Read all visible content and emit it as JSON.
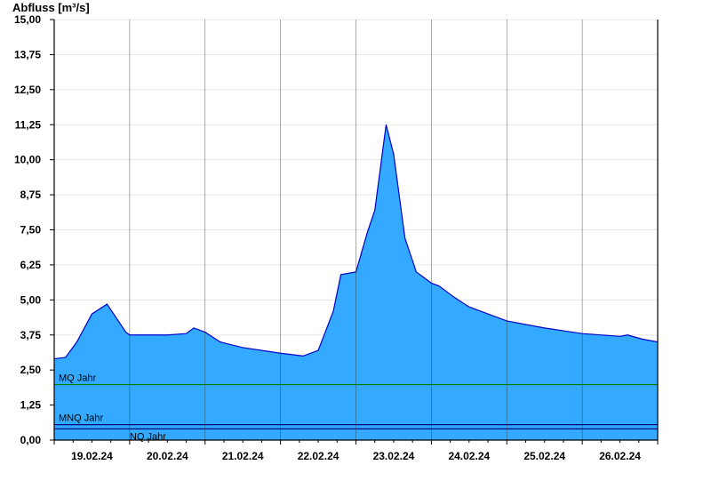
{
  "chart_data": {
    "type": "area",
    "ylabel": "Abfluss [m³/s]",
    "xlabel": "",
    "ylim": [
      0,
      15
    ],
    "y_ticks": [
      "0,00",
      "1,25",
      "2,50",
      "3,75",
      "5,00",
      "6,25",
      "7,50",
      "8,75",
      "10,00",
      "11,25",
      "12,50",
      "13,75",
      "15,00"
    ],
    "x_tick_labels": [
      "19.02.24",
      "20.02.24",
      "21.02.24",
      "22.02.24",
      "23.02.24",
      "24.02.24",
      "25.02.24",
      "26.02.24"
    ],
    "x_range_days": [
      0,
      8
    ],
    "grid": true,
    "area_color": "#33aaff",
    "line_color": "#0000cc",
    "series": [
      {
        "x": [
          0,
          0.15,
          0.3,
          0.5,
          0.7,
          0.95,
          1.0,
          1.5,
          1.75,
          1.85,
          2.0,
          2.2,
          2.5,
          3.0,
          3.3,
          3.5,
          3.7,
          3.8,
          4.0,
          4.15,
          4.25,
          4.4,
          4.5,
          4.65,
          4.8,
          5.0,
          5.1,
          5.3,
          5.5,
          6.0,
          6.5,
          7.0,
          7.5,
          7.6,
          7.8,
          8.0
        ],
        "y": [
          2.9,
          2.95,
          3.5,
          4.5,
          4.85,
          3.85,
          3.75,
          3.75,
          3.8,
          4.0,
          3.85,
          3.5,
          3.3,
          3.1,
          3.0,
          3.2,
          4.6,
          5.9,
          6.0,
          7.4,
          8.2,
          11.25,
          10.2,
          7.2,
          6.0,
          5.6,
          5.5,
          5.1,
          4.75,
          4.25,
          4.0,
          3.8,
          3.7,
          3.75,
          3.6,
          3.5
        ]
      }
    ],
    "reference_lines": [
      {
        "name": "MQ Jahr",
        "value": 1.98,
        "color": "#008000"
      },
      {
        "name": "MNQ Jahr",
        "value": 0.55,
        "color": "#000080"
      },
      {
        "name": "NQ Jahr",
        "value": 0.4,
        "color": "#000080"
      }
    ]
  }
}
